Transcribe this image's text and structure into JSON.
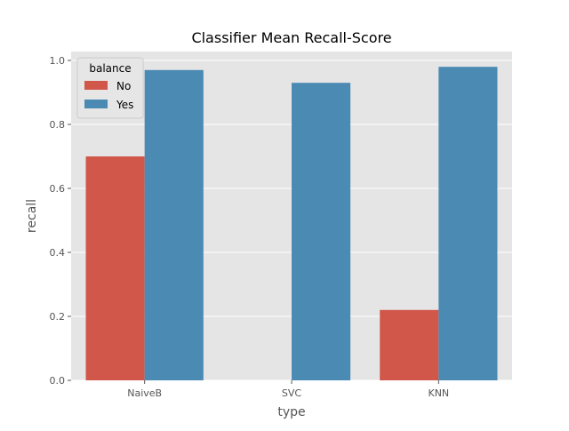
{
  "chart_data": {
    "type": "bar",
    "title": "Classifier Mean Recall-Score",
    "xlabel": "type",
    "ylabel": "recall",
    "categories": [
      "NaiveB",
      "SVC",
      "KNN"
    ],
    "ylim": [
      0,
      1.0
    ],
    "yticks": [
      "0.0",
      "0.2",
      "0.4",
      "0.6",
      "0.8",
      "1.0"
    ],
    "grid": true,
    "legend": {
      "title": "balance",
      "position": "top-left"
    },
    "series": [
      {
        "name": "No",
        "color": "#d1574a",
        "values": [
          0.7,
          0.0,
          0.22
        ]
      },
      {
        "name": "Yes",
        "color": "#4a8ab3",
        "values": [
          0.97,
          0.93,
          0.98
        ]
      }
    ]
  },
  "style": {
    "plot_background": "#e5e5e5",
    "grid_color": "#ffffff"
  }
}
